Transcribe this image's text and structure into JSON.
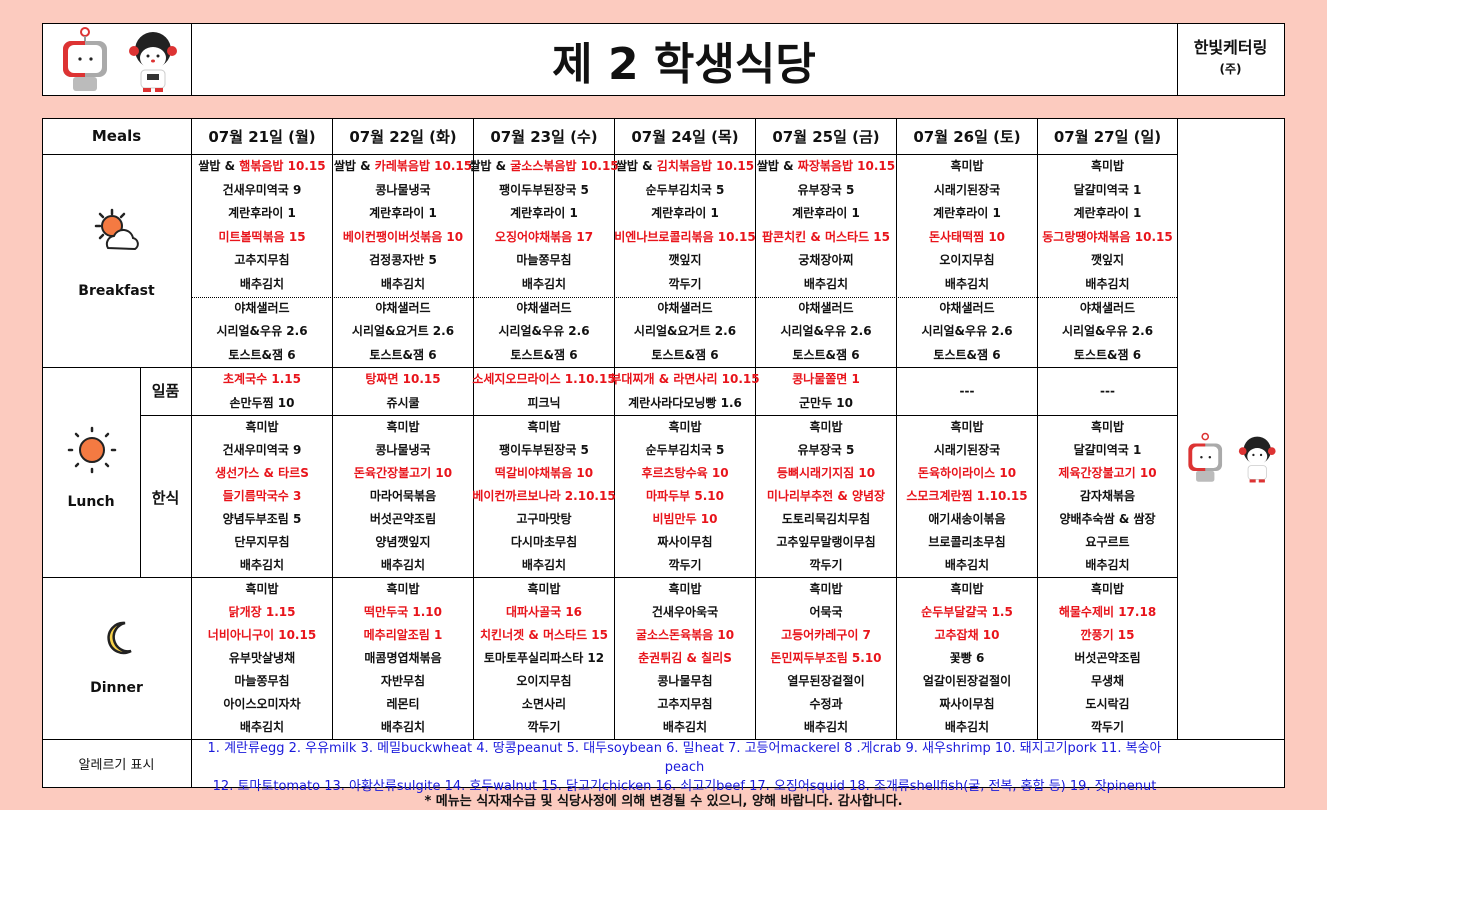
{
  "header": {
    "title": "제 2 학생식당",
    "company": "한빛케터링",
    "company_suffix": "(주)",
    "logo": "gist-mascots"
  },
  "table": {
    "meals_label": "Meals",
    "breakfast_label": "Breakfast",
    "lunch_label": "Lunch",
    "dinner_label": "Dinner",
    "lunch_sub": [
      "일품",
      "한식"
    ],
    "allergy_label": "알레르기 표시",
    "icons": {
      "breakfast": "sun-cloud-icon",
      "lunch": "sun-icon",
      "dinner": "moon-icon"
    }
  },
  "colors": {
    "background": "#fccbbf",
    "highlight": "#e8141b",
    "allergy": "#1a1adb"
  },
  "days": [
    {
      "date": "07월 21일 (월)",
      "breakfast": [
        {
          "prefix": "쌀밥 & ",
          "text": "햄볶음밥 10.15",
          "red": true
        },
        {
          "text": "건새우미역국 9"
        },
        {
          "text": "계란후라이 1"
        },
        {
          "text": "미트볼떡볶음 15",
          "red": true
        },
        {
          "text": "고추지무침"
        },
        {
          "text": "배추김치"
        },
        {
          "text": "야채샐러드"
        },
        {
          "text": "시리얼&우유 2.6"
        },
        {
          "text": "토스트&잼 6"
        }
      ],
      "ilpum": [
        {
          "text": "초계국수 1.15",
          "red": true
        },
        {
          "text": "손만두찜 10"
        }
      ],
      "hansik": [
        {
          "text": "흑미밥"
        },
        {
          "text": "건새우미역국 9"
        },
        {
          "text": "생선가스 & 타르S",
          "red": true
        },
        {
          "text": "들기름막국수 3",
          "red": true
        },
        {
          "text": "양념두부조림 5"
        },
        {
          "text": "단무지무침"
        },
        {
          "text": "배추김치"
        }
      ],
      "dinner": [
        {
          "text": "흑미밥"
        },
        {
          "text": "닭개장 1.15",
          "red": true
        },
        {
          "text": "너비아니구이 10.15",
          "red": true
        },
        {
          "text": "유부맛살냉채"
        },
        {
          "text": "마늘쫑무침"
        },
        {
          "text": "아이스오미자차"
        },
        {
          "text": "배추김치"
        }
      ]
    },
    {
      "date": "07월 22일 (화)",
      "breakfast": [
        {
          "prefix": "쌀밥 & ",
          "text": "카레볶음밥 10.15",
          "red": true
        },
        {
          "text": "콩나물냉국"
        },
        {
          "text": "계란후라이 1"
        },
        {
          "text": "베이컨팽이버섯볶음 10",
          "red": true
        },
        {
          "text": "검정콩자반 5"
        },
        {
          "text": "배추김치"
        },
        {
          "text": "야채샐러드"
        },
        {
          "text": "시리얼&요거트 2.6"
        },
        {
          "text": "토스트&잼 6"
        }
      ],
      "ilpum": [
        {
          "text": "탕짜면 10.15",
          "red": true
        },
        {
          "text": "쥬시쿨"
        }
      ],
      "hansik": [
        {
          "text": "흑미밥"
        },
        {
          "text": "콩나물냉국"
        },
        {
          "text": "돈육간장불고기 10",
          "red": true
        },
        {
          "text": "마라어묵볶음"
        },
        {
          "text": "버섯곤약조림"
        },
        {
          "text": "양념깻잎지"
        },
        {
          "text": "배추김치"
        }
      ],
      "dinner": [
        {
          "text": "흑미밥"
        },
        {
          "text": "떡만두국 1.10",
          "red": true
        },
        {
          "text": "메추리알조림 1",
          "red": true
        },
        {
          "text": "매콤명엽채볶음"
        },
        {
          "text": "자반무침"
        },
        {
          "text": "레몬티"
        },
        {
          "text": "배추김치"
        }
      ]
    },
    {
      "date": "07월 23일 (수)",
      "breakfast": [
        {
          "prefix": "쌀밥 & ",
          "text": "굴소스볶음밥 10.15",
          "red": true
        },
        {
          "text": "팽이두부된장국 5"
        },
        {
          "text": "계란후라이 1"
        },
        {
          "text": "오징어야채볶음 17",
          "red": true
        },
        {
          "text": "마늘쫑무침"
        },
        {
          "text": "배추김치"
        },
        {
          "text": "야채샐러드"
        },
        {
          "text": "시리얼&우유 2.6"
        },
        {
          "text": "토스트&잼 6"
        }
      ],
      "ilpum": [
        {
          "text": "소세지오므라이스 1.10.15",
          "red": true
        },
        {
          "text": "피크닉"
        }
      ],
      "hansik": [
        {
          "text": "흑미밥"
        },
        {
          "text": "팽이두부된장국 5"
        },
        {
          "text": "떡갈비야채볶음 10",
          "red": true
        },
        {
          "text": "베이컨까르보나라 2.10.15",
          "red": true
        },
        {
          "text": "고구마맛탕"
        },
        {
          "text": "다시마초무침"
        },
        {
          "text": "배추김치"
        }
      ],
      "dinner": [
        {
          "text": "흑미밥"
        },
        {
          "text": "대파사골국 16",
          "red": true
        },
        {
          "text": "치킨너겟 & 머스타드 15",
          "red": true
        },
        {
          "text": "토마토푸실리파스타 12"
        },
        {
          "text": "오이지무침"
        },
        {
          "text": "소면사리"
        },
        {
          "text": "깍두기"
        }
      ]
    },
    {
      "date": "07월 24일 (목)",
      "breakfast": [
        {
          "prefix": "쌀밥 & ",
          "text": "김치볶음밥 10.15",
          "red": true
        },
        {
          "text": "순두부김치국 5"
        },
        {
          "text": "계란후라이 1"
        },
        {
          "text": "비엔나브로콜리볶음 10.15",
          "red": true
        },
        {
          "text": "깻잎지"
        },
        {
          "text": "깍두기"
        },
        {
          "text": "야채샐러드"
        },
        {
          "text": "시리얼&요거트 2.6"
        },
        {
          "text": "토스트&잼 6"
        }
      ],
      "ilpum": [
        {
          "text": "부대찌개 & 라면사리 10.15",
          "red": true
        },
        {
          "text": "계란사라다모닝빵 1.6"
        }
      ],
      "hansik": [
        {
          "text": "흑미밥"
        },
        {
          "text": "순두부김치국 5"
        },
        {
          "text": "후르츠탕수육 10",
          "red": true
        },
        {
          "text": "마파두부 5.10",
          "red": true
        },
        {
          "text": "비빔만두 10",
          "red": true
        },
        {
          "text": "짜사이무침"
        },
        {
          "text": "깍두기"
        }
      ],
      "dinner": [
        {
          "text": "흑미밥"
        },
        {
          "text": "건새우아욱국"
        },
        {
          "text": "굴소스돈육볶음 10",
          "red": true
        },
        {
          "text": "춘권튀김 & 칠리S",
          "red": true
        },
        {
          "text": "콩나물무침"
        },
        {
          "text": "고추지무침"
        },
        {
          "text": "배추김치"
        }
      ]
    },
    {
      "date": "07월 25일 (금)",
      "breakfast": [
        {
          "prefix": "쌀밥 & ",
          "text": "짜장볶음밥 10.15",
          "red": true
        },
        {
          "text": "유부장국 5"
        },
        {
          "text": "계란후라이 1"
        },
        {
          "text": "팝콘치킨 & 머스타드 15",
          "red": true
        },
        {
          "text": "궁채장아찌"
        },
        {
          "text": "배추김치"
        },
        {
          "text": "야채샐러드"
        },
        {
          "text": "시리얼&우유 2.6"
        },
        {
          "text": "토스트&잼 6"
        }
      ],
      "ilpum": [
        {
          "text": "콩나물쫄면 1",
          "red": true
        },
        {
          "text": "군만두 10"
        }
      ],
      "hansik": [
        {
          "text": "흑미밥"
        },
        {
          "text": "유부장국 5"
        },
        {
          "text": "등뼈시래기지짐 10",
          "red": true
        },
        {
          "text": "미나리부추전 & 양념장",
          "red": true
        },
        {
          "text": "도토리묵김치무침"
        },
        {
          "text": "고추잎무말랭이무침"
        },
        {
          "text": "깍두기"
        }
      ],
      "dinner": [
        {
          "text": "흑미밥"
        },
        {
          "text": "어묵국"
        },
        {
          "text": "고등어카레구이 7",
          "red": true
        },
        {
          "text": "돈민찌두부조림 5.10",
          "red": true
        },
        {
          "text": "열무된장겉절이"
        },
        {
          "text": "수정과"
        },
        {
          "text": "배추김치"
        }
      ]
    },
    {
      "date": "07월 26일 (토)",
      "breakfast": [
        {
          "text": "흑미밥"
        },
        {
          "text": "시래기된장국"
        },
        {
          "text": "계란후라이 1"
        },
        {
          "text": "돈사태떡찜 10",
          "red": true
        },
        {
          "text": "오이지무침"
        },
        {
          "text": "배추김치"
        },
        {
          "text": "야채샐러드"
        },
        {
          "text": "시리얼&우유 2.6"
        },
        {
          "text": "토스트&잼 6"
        }
      ],
      "ilpum": [
        {
          "text": "---"
        }
      ],
      "hansik": [
        {
          "text": "흑미밥"
        },
        {
          "text": "시래기된장국"
        },
        {
          "text": "돈육하이라이스 10",
          "red": true
        },
        {
          "text": "스모크계란찜 1.10.15",
          "red": true
        },
        {
          "text": "애기새송이볶음"
        },
        {
          "text": "브로콜리초무침"
        },
        {
          "text": "배추김치"
        }
      ],
      "dinner": [
        {
          "text": "흑미밥"
        },
        {
          "text": "순두부달걀국 1.5",
          "red": true
        },
        {
          "text": "고추잡채 10",
          "red": true
        },
        {
          "text": "꽃빵 6"
        },
        {
          "text": "얼갈이된장겉절이"
        },
        {
          "text": "짜사이무침"
        },
        {
          "text": "배추김치"
        }
      ]
    },
    {
      "date": "07월 27일 (일)",
      "breakfast": [
        {
          "text": "흑미밥"
        },
        {
          "text": "달걀미역국 1"
        },
        {
          "text": "계란후라이 1"
        },
        {
          "text": "동그랑땡야채볶음 10.15",
          "red": true
        },
        {
          "text": "깻잎지"
        },
        {
          "text": "배추김치"
        },
        {
          "text": "야채샐러드"
        },
        {
          "text": "시리얼&우유 2.6"
        },
        {
          "text": "토스트&잼 6"
        }
      ],
      "ilpum": [
        {
          "text": "---"
        }
      ],
      "hansik": [
        {
          "text": "흑미밥"
        },
        {
          "text": "달걀미역국 1"
        },
        {
          "text": "제육간장불고기 10",
          "red": true
        },
        {
          "text": "감자채볶음"
        },
        {
          "text": "양배추숙쌈 & 쌈장"
        },
        {
          "text": "요구르트"
        },
        {
          "text": "배추김치"
        }
      ],
      "dinner": [
        {
          "text": "흑미밥"
        },
        {
          "text": "해물수제비 17.18",
          "red": true
        },
        {
          "text": "깐풍기 15",
          "red": true
        },
        {
          "text": "버섯곤약조림"
        },
        {
          "text": "무생채"
        },
        {
          "text": "도시락김"
        },
        {
          "text": "깍두기"
        }
      ]
    }
  ],
  "allergy": {
    "lines": [
      "1. 계란류egg 2. 우유milk 3. 메밀buckwheat 4. 땅콩peanut 5. 대두soybean 6. 밀heat 7. 고등어mackerel 8 .게crab 9. 새우shrimp 10. 돼지고기pork 11. 복숭아",
      "peach",
      "12. 토마토tomato 13. 아황산류sulgite 14. 호두walnut 15. 닭고기chicken 16. 쇠고기beef 17. 오징어squid 18. 조개류shellfish(굴, 전복, 홍합 등) 19. 잣pinenut"
    ]
  },
  "footnote": "* 메뉴는 식자재수급 및 식당사정에 의해 변경될 수 있으니, 양해 바랍니다. 감사합니다."
}
